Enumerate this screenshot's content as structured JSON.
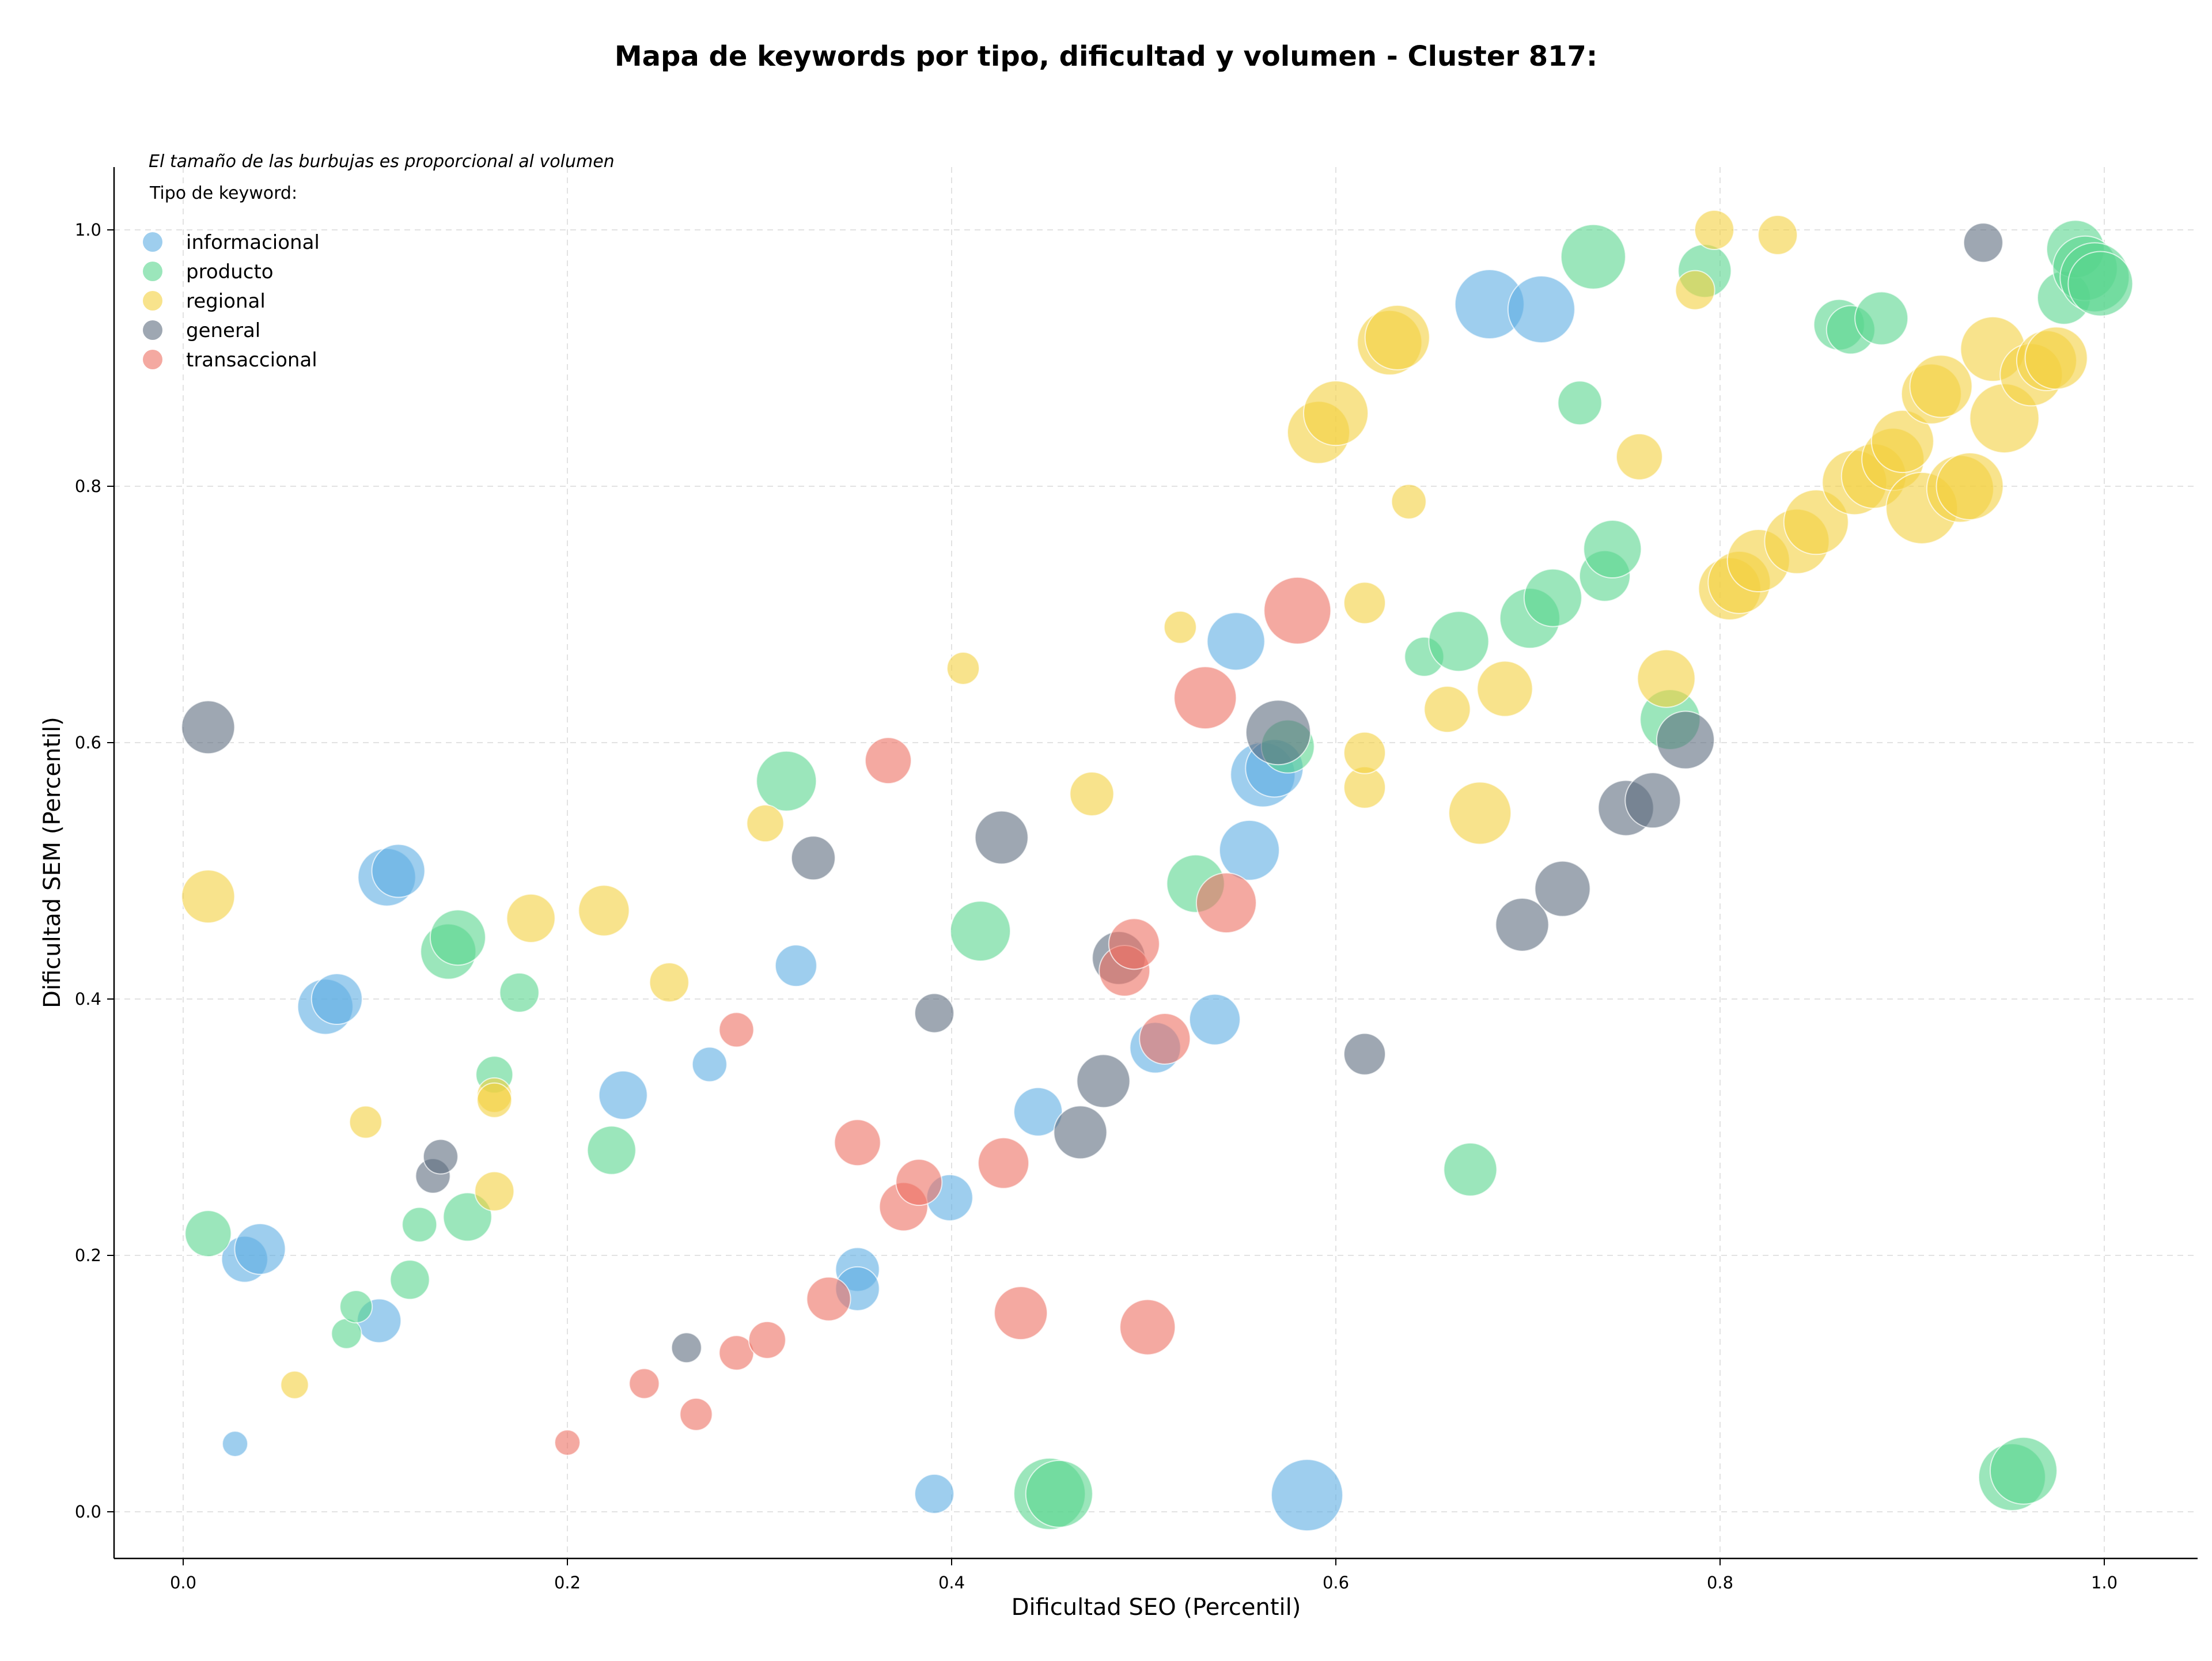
{
  "chart_data": {
    "type": "scatter",
    "title": "Mapa de keywords por tipo, dificultad y volumen - Cluster 817:",
    "subtitle": "El tamaño de las burbujas es proporcional al volumen",
    "xlabel": "Dificultad SEO (Percentil)",
    "ylabel": "Dificultad SEM (Percentil)",
    "xlim": [
      -0.035,
      1.05
    ],
    "ylim": [
      -0.035,
      1.05
    ],
    "x_ticks": [
      "0.0",
      "0.2",
      "0.4",
      "0.6",
      "0.8",
      "1.0"
    ],
    "y_ticks": [
      "0.0",
      "0.2",
      "0.4",
      "0.6",
      "0.8",
      "1.0"
    ],
    "grid": true,
    "legend_title": "Tipo de keyword:",
    "legend_position": "top-left",
    "colors": {
      "informacional": "#5dade2",
      "producto": "#58d68d",
      "regional": "#f4d03f",
      "general": "#5d6d7e",
      "transaccional": "#ec7063"
    },
    "series": [
      {
        "name": "informacional",
        "points": [
          [
            0.027,
            0.053,
            22
          ],
          [
            0.032,
            0.197,
            40
          ],
          [
            0.04,
            0.205,
            44
          ],
          [
            0.102,
            0.149,
            38
          ],
          [
            0.074,
            0.394,
            48
          ],
          [
            0.08,
            0.4,
            44
          ],
          [
            0.106,
            0.495,
            50
          ],
          [
            0.112,
            0.5,
            46
          ],
          [
            0.229,
            0.325,
            42
          ],
          [
            0.274,
            0.349,
            30
          ],
          [
            0.319,
            0.426,
            36
          ],
          [
            0.351,
            0.189,
            38
          ],
          [
            0.351,
            0.174,
            38
          ],
          [
            0.399,
            0.245,
            40
          ],
          [
            0.391,
            0.014,
            34
          ],
          [
            0.445,
            0.312,
            42
          ],
          [
            0.506,
            0.362,
            44
          ],
          [
            0.537,
            0.384,
            44
          ],
          [
            0.555,
            0.516,
            52
          ],
          [
            0.548,
            0.679,
            50
          ],
          [
            0.562,
            0.575,
            56
          ],
          [
            0.568,
            0.58,
            50
          ],
          [
            0.585,
            0.013,
            62
          ],
          [
            0.68,
            0.942,
            60
          ],
          [
            0.707,
            0.938,
            58
          ]
        ]
      },
      {
        "name": "producto",
        "points": [
          [
            0.013,
            0.217,
            40
          ],
          [
            0.085,
            0.139,
            26
          ],
          [
            0.09,
            0.16,
            28
          ],
          [
            0.118,
            0.181,
            34
          ],
          [
            0.123,
            0.224,
            30
          ],
          [
            0.138,
            0.437,
            48
          ],
          [
            0.143,
            0.448,
            48
          ],
          [
            0.148,
            0.23,
            42
          ],
          [
            0.162,
            0.341,
            32
          ],
          [
            0.175,
            0.405,
            34
          ],
          [
            0.223,
            0.282,
            42
          ],
          [
            0.314,
            0.57,
            52
          ],
          [
            0.415,
            0.453,
            52
          ],
          [
            0.527,
            0.49,
            50
          ],
          [
            0.575,
            0.597,
            46
          ],
          [
            0.646,
            0.667,
            34
          ],
          [
            0.664,
            0.679,
            52
          ],
          [
            0.67,
            0.267,
            46
          ],
          [
            0.701,
            0.697,
            52
          ],
          [
            0.713,
            0.713,
            50
          ],
          [
            0.727,
            0.865,
            38
          ],
          [
            0.734,
            0.979,
            56
          ],
          [
            0.74,
            0.73,
            44
          ],
          [
            0.744,
            0.751,
            50
          ],
          [
            0.451,
            0.014,
            62
          ],
          [
            0.456,
            0.014,
            58
          ],
          [
            0.774,
            0.618,
            52
          ],
          [
            0.792,
            0.968,
            46
          ],
          [
            0.862,
            0.926,
            44
          ],
          [
            0.868,
            0.922,
            42
          ],
          [
            0.884,
            0.931,
            46
          ],
          [
            0.952,
            0.027,
            58
          ],
          [
            0.958,
            0.032,
            58
          ],
          [
            0.979,
            0.947,
            46
          ],
          [
            0.985,
            0.985,
            50
          ],
          [
            0.99,
            0.97,
            56
          ],
          [
            0.995,
            0.963,
            60
          ],
          [
            0.998,
            0.958,
            56
          ]
        ]
      },
      {
        "name": "regional",
        "points": [
          [
            0.013,
            0.48,
            46
          ],
          [
            0.058,
            0.099,
            24
          ],
          [
            0.095,
            0.304,
            28
          ],
          [
            0.162,
            0.325,
            30
          ],
          [
            0.162,
            0.321,
            30
          ],
          [
            0.162,
            0.25,
            34
          ],
          [
            0.181,
            0.463,
            42
          ],
          [
            0.219,
            0.469,
            44
          ],
          [
            0.253,
            0.413,
            34
          ],
          [
            0.303,
            0.537,
            32
          ],
          [
            0.406,
            0.658,
            28
          ],
          [
            0.473,
            0.56,
            38
          ],
          [
            0.519,
            0.69,
            28
          ],
          [
            0.591,
            0.842,
            54
          ],
          [
            0.6,
            0.857,
            56
          ],
          [
            0.615,
            0.565,
            36
          ],
          [
            0.615,
            0.592,
            36
          ],
          [
            0.615,
            0.709,
            36
          ],
          [
            0.628,
            0.912,
            56
          ],
          [
            0.632,
            0.916,
            56
          ],
          [
            0.638,
            0.788,
            30
          ],
          [
            0.658,
            0.626,
            40
          ],
          [
            0.675,
            0.545,
            54
          ],
          [
            0.688,
            0.642,
            48
          ],
          [
            0.758,
            0.823,
            40
          ],
          [
            0.772,
            0.65,
            50
          ],
          [
            0.787,
            0.953,
            34
          ],
          [
            0.797,
            1.0,
            34
          ],
          [
            0.83,
            0.996,
            34
          ],
          [
            0.805,
            0.72,
            54
          ],
          [
            0.81,
            0.725,
            54
          ],
          [
            0.82,
            0.742,
            54
          ],
          [
            0.84,
            0.757,
            56
          ],
          [
            0.85,
            0.772,
            56
          ],
          [
            0.87,
            0.803,
            56
          ],
          [
            0.88,
            0.808,
            56
          ],
          [
            0.89,
            0.821,
            54
          ],
          [
            0.895,
            0.835,
            54
          ],
          [
            0.905,
            0.783,
            62
          ],
          [
            0.91,
            0.872,
            52
          ],
          [
            0.915,
            0.878,
            54
          ],
          [
            0.925,
            0.798,
            58
          ],
          [
            0.93,
            0.8,
            58
          ],
          [
            0.942,
            0.907,
            56
          ],
          [
            0.948,
            0.853,
            60
          ],
          [
            0.962,
            0.887,
            54
          ],
          [
            0.97,
            0.898,
            52
          ],
          [
            0.975,
            0.9,
            54
          ]
        ]
      },
      {
        "name": "general",
        "points": [
          [
            0.013,
            0.612,
            46
          ],
          [
            0.13,
            0.262,
            30
          ],
          [
            0.134,
            0.277,
            30
          ],
          [
            0.262,
            0.128,
            26
          ],
          [
            0.328,
            0.51,
            38
          ],
          [
            0.391,
            0.389,
            34
          ],
          [
            0.426,
            0.526,
            46
          ],
          [
            0.467,
            0.296,
            46
          ],
          [
            0.479,
            0.336,
            46
          ],
          [
            0.487,
            0.432,
            46
          ],
          [
            0.57,
            0.608,
            56
          ],
          [
            0.615,
            0.357,
            36
          ],
          [
            0.697,
            0.458,
            46
          ],
          [
            0.718,
            0.486,
            48
          ],
          [
            0.751,
            0.549,
            48
          ],
          [
            0.765,
            0.555,
            48
          ],
          [
            0.782,
            0.602,
            50
          ],
          [
            0.937,
            0.99,
            34
          ]
        ]
      },
      {
        "name": "transaccional",
        "points": [
          [
            0.2,
            0.054,
            22
          ],
          [
            0.24,
            0.1,
            26
          ],
          [
            0.267,
            0.076,
            28
          ],
          [
            0.288,
            0.124,
            30
          ],
          [
            0.288,
            0.376,
            30
          ],
          [
            0.304,
            0.134,
            32
          ],
          [
            0.336,
            0.166,
            38
          ],
          [
            0.351,
            0.288,
            40
          ],
          [
            0.367,
            0.586,
            40
          ],
          [
            0.375,
            0.238,
            42
          ],
          [
            0.383,
            0.257,
            40
          ],
          [
            0.427,
            0.272,
            44
          ],
          [
            0.436,
            0.155,
            46
          ],
          [
            0.49,
            0.422,
            44
          ],
          [
            0.495,
            0.443,
            44
          ],
          [
            0.502,
            0.144,
            48
          ],
          [
            0.511,
            0.369,
            44
          ],
          [
            0.532,
            0.635,
            54
          ],
          [
            0.543,
            0.475,
            52
          ],
          [
            0.58,
            0.703,
            58
          ]
        ]
      }
    ]
  }
}
